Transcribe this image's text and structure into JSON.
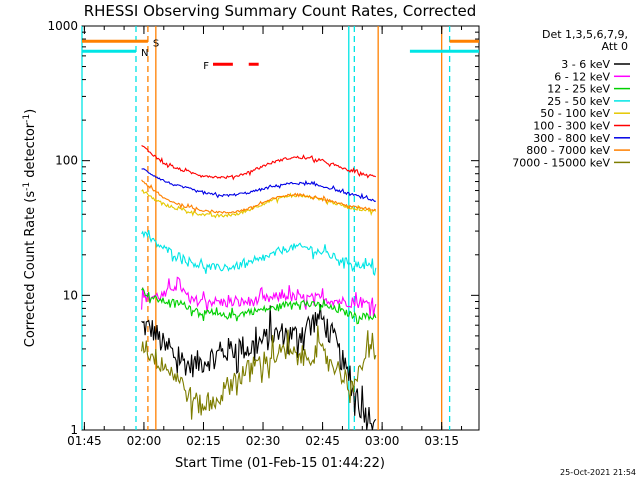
{
  "chart_data": {
    "type": "line",
    "title": "RHESSI Observing Summary Count Rates, Corrected",
    "xlabel": "Start Time (01-Feb-15 01:44:22)",
    "ylabel_main": "Corrected Count Rate (s",
    "ylabel_sup1": "-1",
    "ylabel_mid": " detector",
    "ylabel_sup2": "-1",
    "ylabel_end": ")",
    "yscale": "log",
    "ylim": [
      1,
      1000
    ],
    "y_ticks": [
      1,
      10,
      100,
      1000
    ],
    "y_tick_labels": [
      "1",
      "10",
      "100",
      "1000"
    ],
    "x_unit": "minutes since 01:44:22",
    "xlim": [
      0,
      100
    ],
    "x_ticks": [
      0.6,
      15.6,
      30.6,
      45.6,
      60.6,
      75.6,
      90.6
    ],
    "x_tick_labels": [
      "01:45",
      "02:00",
      "02:15",
      "02:30",
      "02:45",
      "03:00",
      "03:15"
    ],
    "legend_header": [
      "Det 1,3,5,6,7,9,",
      "Att 0"
    ],
    "legend_placement": "right",
    "series": [
      {
        "name": "3 - 6 keV",
        "color": "#000000",
        "x": [
          15,
          18,
          21,
          24,
          27,
          30,
          33,
          36,
          39,
          42,
          45,
          48,
          51,
          54,
          57,
          60,
          63,
          66,
          69,
          70,
          72,
          74
        ],
        "values": [
          6,
          5.5,
          4,
          3.5,
          3,
          3.2,
          3.5,
          3.8,
          4.2,
          4,
          4.5,
          5,
          5.2,
          5,
          6,
          7,
          5,
          3,
          1.8,
          1.5,
          1.3,
          1.2
        ]
      },
      {
        "name": "6 - 12 keV",
        "color": "#ff00ff",
        "x": [
          15,
          18,
          21,
          24,
          27,
          30,
          33,
          36,
          39,
          42,
          45,
          48,
          51,
          54,
          57,
          60,
          63,
          66,
          69,
          72,
          74
        ],
        "values": [
          9.5,
          9.8,
          10,
          13,
          9,
          9.2,
          9,
          8.8,
          8.8,
          9,
          9.2,
          9.5,
          10,
          9.5,
          9.5,
          9.5,
          9.2,
          9,
          8.8,
          8.7,
          8.6
        ]
      },
      {
        "name": "12 - 25 keV",
        "color": "#00d000",
        "x": [
          15,
          18,
          21,
          24,
          27,
          30,
          33,
          36,
          39,
          42,
          45,
          48,
          51,
          54,
          57,
          60,
          63,
          66,
          69,
          72,
          74
        ],
        "values": [
          11,
          9.5,
          9,
          8.8,
          8.2,
          7.5,
          7.2,
          7,
          7.2,
          7.5,
          7.8,
          8,
          8.5,
          9,
          8.5,
          8.5,
          8,
          7.5,
          7,
          7,
          6.8
        ]
      },
      {
        "name": "25 - 50 keV",
        "color": "#00e5e5",
        "x": [
          15,
          18,
          21,
          24,
          27,
          30,
          33,
          36,
          39,
          42,
          45,
          48,
          51,
          54,
          57,
          60,
          63,
          66,
          69,
          72,
          74
        ],
        "values": [
          30,
          25,
          22,
          20,
          18,
          16.5,
          16,
          16,
          16.5,
          17,
          18.5,
          20,
          22,
          23,
          22.5,
          21,
          19.5,
          18,
          17,
          16.5,
          16
        ]
      },
      {
        "name": "50 - 100 keV",
        "color": "#e5c800",
        "x": [
          15,
          18,
          21,
          24,
          27,
          30,
          33,
          36,
          39,
          42,
          45,
          48,
          51,
          54,
          57,
          60,
          63,
          66,
          69,
          72,
          74
        ],
        "values": [
          60,
          52,
          47,
          44,
          42,
          40,
          39,
          39,
          40,
          43,
          47,
          51,
          54,
          55,
          54,
          52,
          49,
          46,
          44,
          43,
          42
        ]
      },
      {
        "name": "100 - 300 keV",
        "color": "#ff0000",
        "x": [
          15,
          18,
          21,
          24,
          27,
          30,
          33,
          36,
          39,
          42,
          45,
          48,
          51,
          54,
          57,
          60,
          63,
          66,
          69,
          72,
          74
        ],
        "values": [
          130,
          110,
          95,
          87,
          82,
          78,
          76,
          75,
          77,
          82,
          90,
          97,
          103,
          106,
          104,
          100,
          94,
          87,
          82,
          78,
          76
        ]
      },
      {
        "name": "300 - 800 keV",
        "color": "#0000e5",
        "x": [
          15,
          18,
          21,
          24,
          27,
          30,
          33,
          36,
          39,
          42,
          45,
          48,
          51,
          54,
          57,
          60,
          63,
          66,
          69,
          72,
          74
        ],
        "values": [
          88,
          78,
          70,
          65,
          62,
          58,
          56,
          55,
          56,
          58,
          61,
          64,
          67,
          68,
          67,
          65,
          62,
          58,
          55,
          52,
          50
        ]
      },
      {
        "name": "800 - 7000 keV",
        "color": "#ff8000",
        "x": [
          15,
          18,
          21,
          24,
          27,
          30,
          33,
          36,
          39,
          42,
          45,
          48,
          51,
          54,
          57,
          60,
          63,
          66,
          69,
          72,
          74
        ],
        "values": [
          72,
          60,
          52,
          48,
          45,
          43,
          42,
          41,
          42,
          44,
          48,
          52,
          55,
          56,
          55,
          53,
          50,
          47,
          45,
          44,
          43
        ]
      },
      {
        "name": "7000 - 15000 keV",
        "color": "#7d7d00",
        "x": [
          15,
          18,
          21,
          24,
          27,
          30,
          33,
          36,
          39,
          42,
          45,
          48,
          51,
          54,
          57,
          60,
          63,
          66,
          69,
          70,
          72,
          74
        ],
        "values": [
          4.5,
          3.5,
          3,
          2.5,
          1.8,
          1.5,
          1.6,
          2,
          2.5,
          2.8,
          3.2,
          3.5,
          3.8,
          3.5,
          3.6,
          3.8,
          3.2,
          2.5,
          2,
          3,
          3.8,
          3.6
        ]
      }
    ],
    "state_bars": [
      {
        "label": "N",
        "color": "#00e5e5",
        "level": 650,
        "segments": [
          [
            0,
            13.6
          ],
          [
            82.6,
            100
          ]
        ]
      },
      {
        "label": "S",
        "color": "#ff8000",
        "level": 770,
        "segments": [
          [
            0,
            16.6
          ],
          [
            92.6,
            100
          ]
        ]
      },
      {
        "label": "F",
        "color": "#ff0000",
        "level": 520,
        "segments": [
          [
            33,
            38
          ],
          [
            42,
            44.5
          ]
        ]
      }
    ],
    "vlines_solid": [
      {
        "x": 0,
        "color": "#00e5e5"
      },
      {
        "x": 18.6,
        "color": "#ff8000"
      },
      {
        "x": 67.2,
        "color": "#00e5e5"
      },
      {
        "x": 74.6,
        "color": "#ff8000"
      },
      {
        "x": 90.6,
        "color": "#ff8000"
      }
    ],
    "vlines_dashed": [
      {
        "x": 13.6,
        "color": "#00e5e5"
      },
      {
        "x": 16.6,
        "color": "#ff8000"
      },
      {
        "x": 68.6,
        "color": "#00e5e5"
      },
      {
        "x": 92.6,
        "color": "#00e5e5"
      }
    ],
    "timestamp": "25-Oct-2021 21:54"
  }
}
